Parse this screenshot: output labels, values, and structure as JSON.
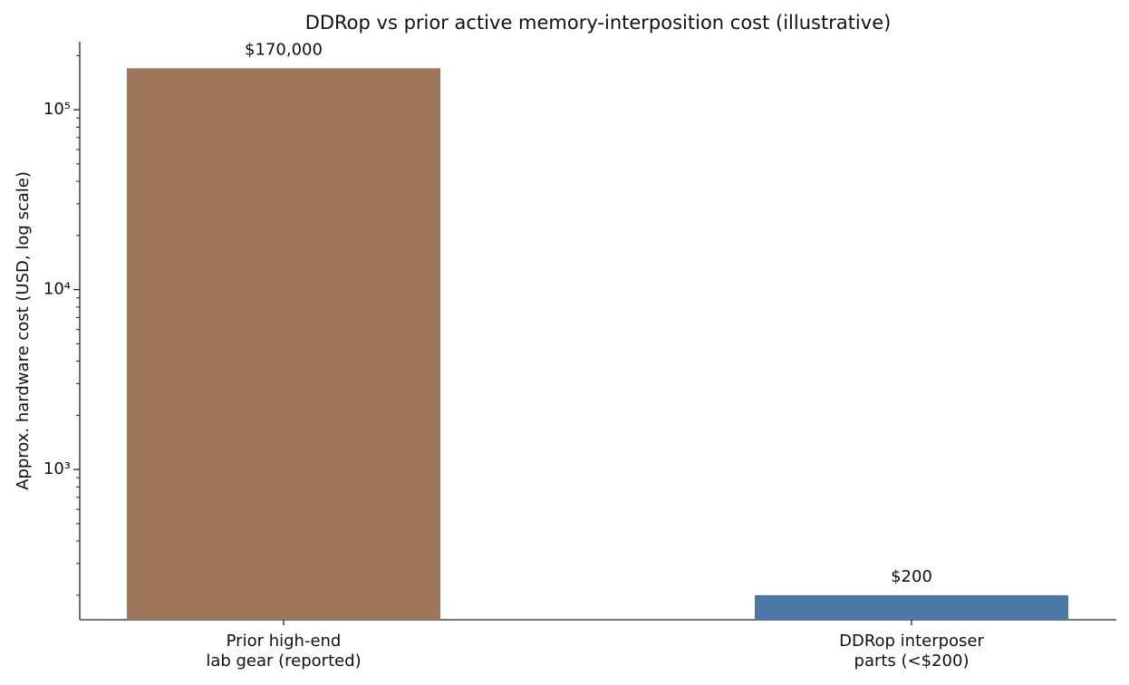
{
  "chart_data": {
    "type": "bar",
    "title": "DDRop vs prior active memory-interposition cost (illustrative)",
    "y_label": "Approx. hardware cost (USD, log scale)",
    "categories": [
      "Prior high-end\nlab gear (reported)",
      "DDRop interposer\nparts (<$200)"
    ],
    "values": [
      170000,
      200
    ],
    "value_labels": [
      "$170,000",
      "$200"
    ],
    "colors": [
      "#9e765b",
      "#4c78a8"
    ],
    "log_scale": true,
    "ylim": [
      146,
      239000
    ],
    "yticks": [
      {
        "value": 1000,
        "label": "10³"
      },
      {
        "value": 10000,
        "label": "10⁴"
      },
      {
        "value": 100000,
        "label": "10⁵"
      }
    ]
  }
}
